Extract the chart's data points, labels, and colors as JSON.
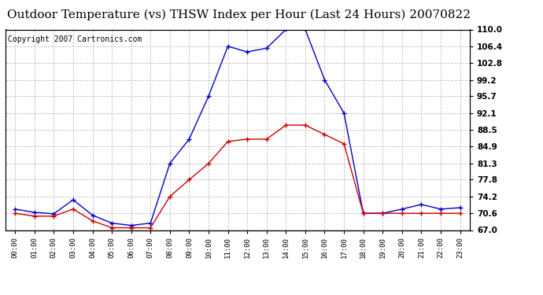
{
  "title": "Outdoor Temperature (vs) THSW Index per Hour (Last 24 Hours) 20070822",
  "copyright_text": "Copyright 2007 Cartronics.com",
  "hours": [
    0,
    1,
    2,
    3,
    4,
    5,
    6,
    7,
    8,
    9,
    10,
    11,
    12,
    13,
    14,
    15,
    16,
    17,
    18,
    19,
    20,
    21,
    22,
    23
  ],
  "blue_thsw": [
    71.5,
    70.8,
    70.5,
    73.5,
    70.2,
    68.5,
    68.0,
    68.5,
    81.3,
    86.5,
    95.7,
    106.4,
    105.2,
    106.0,
    110.0,
    110.0,
    99.2,
    92.1,
    70.6,
    70.6,
    71.5,
    72.5,
    71.5,
    71.8
  ],
  "red_temp": [
    70.6,
    70.0,
    70.0,
    71.5,
    69.0,
    67.5,
    67.5,
    67.5,
    74.2,
    77.8,
    81.3,
    86.0,
    86.5,
    86.5,
    89.5,
    89.5,
    87.5,
    85.5,
    70.6,
    70.6,
    70.6,
    70.6,
    70.6,
    70.6
  ],
  "ylim": [
    67.0,
    110.0
  ],
  "yticks": [
    67.0,
    70.6,
    74.2,
    77.8,
    81.3,
    84.9,
    88.5,
    92.1,
    95.7,
    99.2,
    102.8,
    106.4,
    110.0
  ],
  "blue_color": "#0000cc",
  "red_color": "#cc0000",
  "background_color": "#ffffff",
  "grid_color": "#b0b0b0",
  "title_fontsize": 11,
  "copyright_fontsize": 7
}
